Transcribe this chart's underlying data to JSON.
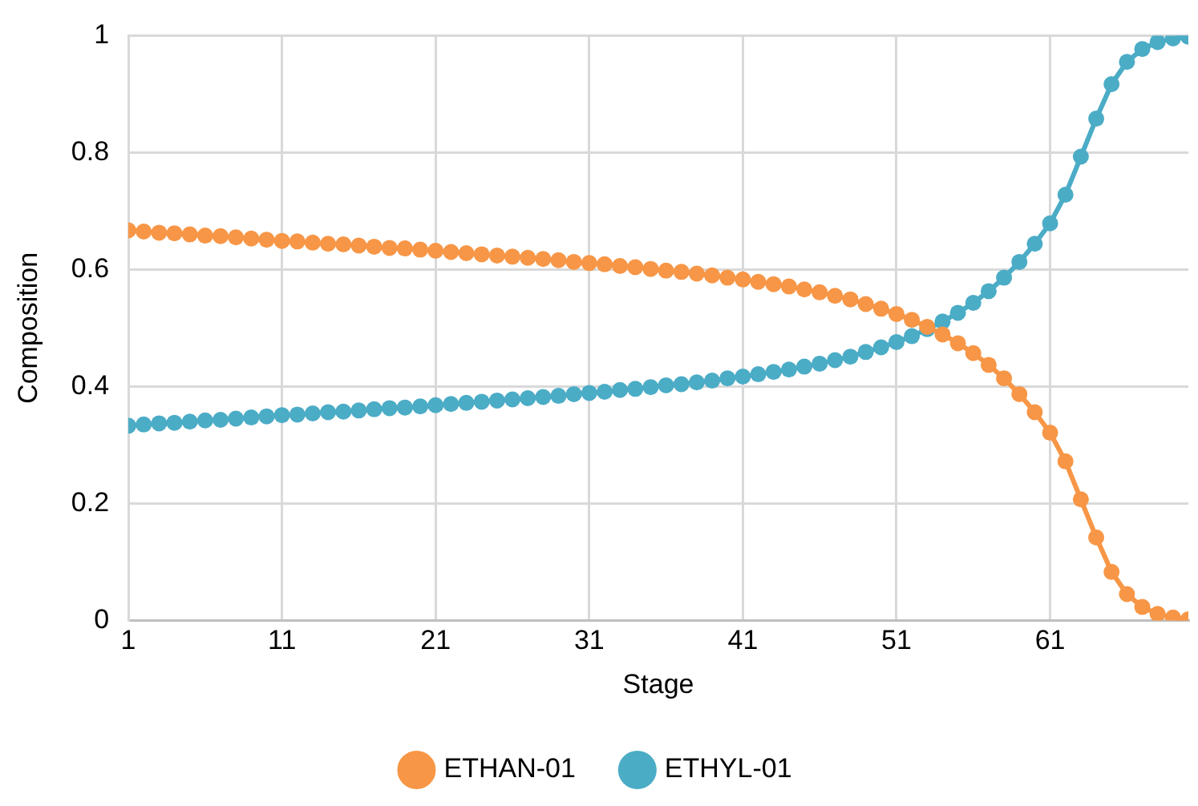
{
  "chart_data": {
    "type": "line",
    "xlabel": "Stage",
    "ylabel": "Composition",
    "x": [
      1,
      2,
      3,
      4,
      5,
      6,
      7,
      8,
      9,
      10,
      11,
      12,
      13,
      14,
      15,
      16,
      17,
      18,
      19,
      20,
      21,
      22,
      23,
      24,
      25,
      26,
      27,
      28,
      29,
      30,
      31,
      32,
      33,
      34,
      35,
      36,
      37,
      38,
      39,
      40,
      41,
      42,
      43,
      44,
      45,
      46,
      47,
      48,
      49,
      50,
      51,
      52,
      53,
      54,
      55,
      56,
      57,
      58,
      59,
      60,
      61,
      62,
      63,
      64,
      65,
      66,
      67,
      68,
      69,
      70
    ],
    "series": [
      {
        "name": "ETHAN-01",
        "color": "#f79646",
        "values": [
          0.667,
          0.665,
          0.663,
          0.662,
          0.66,
          0.658,
          0.657,
          0.655,
          0.653,
          0.651,
          0.649,
          0.648,
          0.646,
          0.644,
          0.643,
          0.641,
          0.639,
          0.637,
          0.636,
          0.634,
          0.632,
          0.63,
          0.628,
          0.626,
          0.624,
          0.622,
          0.62,
          0.618,
          0.616,
          0.613,
          0.611,
          0.609,
          0.606,
          0.604,
          0.601,
          0.598,
          0.596,
          0.593,
          0.59,
          0.586,
          0.583,
          0.579,
          0.575,
          0.571,
          0.566,
          0.561,
          0.555,
          0.549,
          0.541,
          0.533,
          0.524,
          0.514,
          0.502,
          0.489,
          0.474,
          0.457,
          0.437,
          0.414,
          0.387,
          0.356,
          0.321,
          0.272,
          0.207,
          0.142,
          0.083,
          0.045,
          0.023,
          0.011,
          0.005,
          0.002
        ]
      },
      {
        "name": "ETHYL-01",
        "color": "#4bacc6",
        "values": [
          0.333,
          0.335,
          0.337,
          0.338,
          0.34,
          0.342,
          0.343,
          0.345,
          0.347,
          0.349,
          0.351,
          0.352,
          0.354,
          0.356,
          0.357,
          0.359,
          0.361,
          0.363,
          0.364,
          0.366,
          0.368,
          0.37,
          0.372,
          0.374,
          0.376,
          0.378,
          0.38,
          0.382,
          0.384,
          0.387,
          0.389,
          0.391,
          0.394,
          0.396,
          0.399,
          0.402,
          0.404,
          0.407,
          0.41,
          0.414,
          0.417,
          0.421,
          0.425,
          0.429,
          0.434,
          0.439,
          0.445,
          0.451,
          0.459,
          0.467,
          0.476,
          0.486,
          0.498,
          0.511,
          0.526,
          0.543,
          0.563,
          0.586,
          0.613,
          0.644,
          0.679,
          0.728,
          0.793,
          0.858,
          0.917,
          0.955,
          0.977,
          0.989,
          0.995,
          0.998
        ]
      }
    ],
    "xlim": [
      1,
      70
    ],
    "xticks": [
      1,
      11,
      21,
      31,
      41,
      51,
      61
    ],
    "ylim": [
      0,
      1
    ],
    "yticks": [
      0,
      0.2,
      0.4,
      0.6,
      0.8,
      1
    ],
    "grid": true,
    "legend": "bottom",
    "marker": "circle",
    "line_style": "solid"
  }
}
